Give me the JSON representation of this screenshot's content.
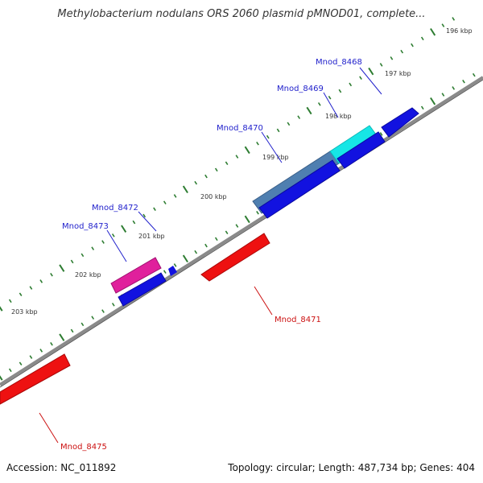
{
  "title": "Methylobacterium nodulans ORS 2060 plasmid pMNOD01, complete...",
  "footer": {
    "accession": "Accession: NC_011892",
    "summary": "Topology: circular; Length: 487,734 bp; Genes: 404"
  },
  "colors": {
    "backbone": "#808080",
    "tick": "#2e7d32",
    "forward_label": "#2222cc",
    "reverse_label": "#cc1111",
    "cds": "#1010e8",
    "reverse_gene": "#ee1111"
  },
  "ticks": [
    "196 kbp",
    "197 kbp",
    "198 kbp",
    "199 kbp",
    "200 kbp",
    "201 kbp",
    "202 kbp",
    "203 kbp"
  ],
  "genes": [
    {
      "name": "Mnod_8468",
      "strand": "forward",
      "color": "#00e5e5"
    },
    {
      "name": "Mnod_8469",
      "strand": "forward",
      "color": "#00e5e5"
    },
    {
      "name": "Mnod_8470",
      "strand": "forward",
      "color": "#4682b4"
    },
    {
      "name": "Mnod_8471",
      "strand": "reverse",
      "color": "#ee1111"
    },
    {
      "name": "Mnod_8472",
      "strand": "forward",
      "color": "#e020a0"
    },
    {
      "name": "Mnod_8473",
      "strand": "forward",
      "color": "#e020a0"
    },
    {
      "name": "Mnod_8475",
      "strand": "reverse",
      "color": "#ee1111"
    }
  ]
}
